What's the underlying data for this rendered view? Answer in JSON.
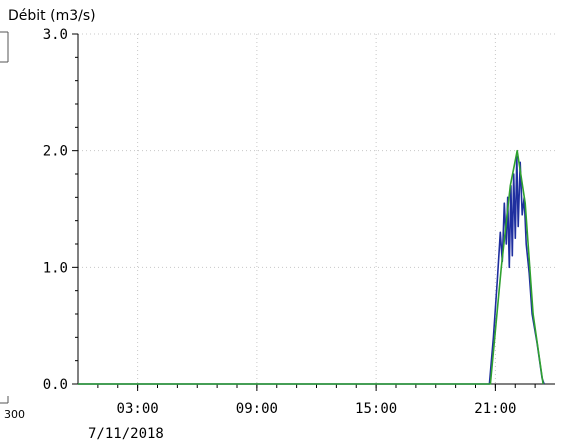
{
  "chart_data": {
    "type": "line",
    "ylabel": "Débit (m3/s)",
    "y_ticks": [
      "0.0",
      "1.0",
      "2.0",
      "3.0"
    ],
    "ylim": [
      0,
      3
    ],
    "x_ticks": [
      "03:00",
      "09:00",
      "15:00",
      "21:00"
    ],
    "x_date_label": "7/11/2018",
    "left_edge_label": "300",
    "x_unit": "hour",
    "xlim": [
      0,
      24
    ],
    "grid": true,
    "series": [
      {
        "color": "#1f2f9f",
        "points": [
          [
            0,
            0
          ],
          [
            20.7,
            0
          ],
          [
            20.9,
            0.4
          ],
          [
            21.1,
            0.9
          ],
          [
            21.25,
            1.3
          ],
          [
            21.35,
            1.05
          ],
          [
            21.45,
            1.55
          ],
          [
            21.55,
            1.2
          ],
          [
            21.62,
            1.6
          ],
          [
            21.7,
            1.0
          ],
          [
            21.78,
            1.7
          ],
          [
            21.85,
            1.1
          ],
          [
            21.92,
            1.8
          ],
          [
            22.0,
            1.25
          ],
          [
            22.08,
            1.95
          ],
          [
            22.15,
            1.35
          ],
          [
            22.25,
            1.9
          ],
          [
            22.35,
            1.45
          ],
          [
            22.45,
            1.6
          ],
          [
            22.55,
            1.2
          ],
          [
            22.7,
            0.95
          ],
          [
            22.85,
            0.6
          ],
          [
            23.1,
            0.35
          ],
          [
            23.35,
            0.05
          ],
          [
            23.45,
            0
          ]
        ]
      },
      {
        "color": "#2fa12f",
        "points": [
          [
            0,
            0
          ],
          [
            20.75,
            0
          ],
          [
            21.3,
            1.0
          ],
          [
            21.75,
            1.7
          ],
          [
            22.1,
            2.0
          ],
          [
            22.5,
            1.55
          ],
          [
            22.9,
            0.6
          ],
          [
            23.4,
            0.0
          ]
        ]
      }
    ]
  }
}
